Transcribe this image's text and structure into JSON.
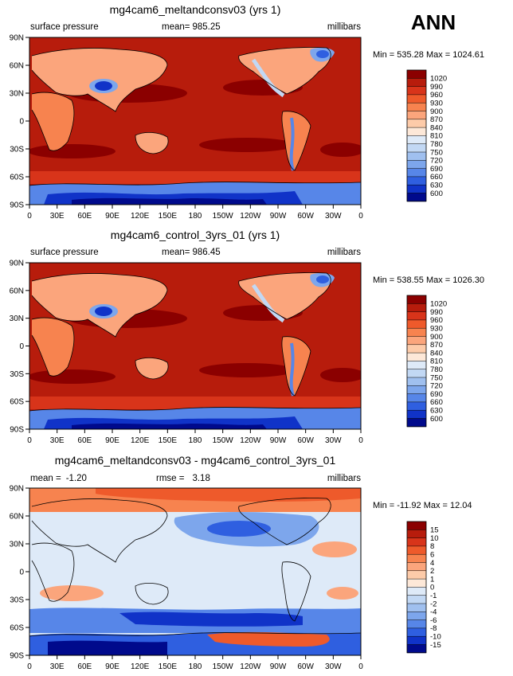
{
  "season_label": "ANN",
  "chart_data": [
    {
      "type": "heatmap",
      "title": "mg4cam6_meltandconsv03 (yrs 1)",
      "variable": "surface pressure",
      "stat_label": "mean=",
      "stat_value": "985.25",
      "units": "millibars",
      "min_max": "Min = 535.28 Max = 1024.61",
      "x_ticks": [
        "0",
        "30E",
        "60E",
        "90E",
        "120E",
        "150E",
        "180",
        "150W",
        "120W",
        "90W",
        "60W",
        "30W",
        "0"
      ],
      "y_ticks": [
        "90N",
        "60N",
        "30N",
        "0",
        "30S",
        "60S",
        "90S"
      ],
      "xlim": [
        0,
        360
      ],
      "ylim": [
        -90,
        90
      ],
      "colorbar": {
        "levels": [
          "1020",
          "990",
          "960",
          "930",
          "900",
          "870",
          "840",
          "810",
          "780",
          "750",
          "720",
          "690",
          "660",
          "630",
          "600"
        ],
        "colors": [
          "#8b0000",
          "#b71c0c",
          "#d8341a",
          "#ee5a2b",
          "#f7834f",
          "#fba57c",
          "#fdcba9",
          "#fde8d8",
          "#deeaf8",
          "#c2d8f4",
          "#a0c0ef",
          "#7da6ec",
          "#5786e8",
          "#2f5fe0",
          "#1033c8",
          "#000a8c"
        ]
      }
    },
    {
      "type": "heatmap",
      "title": "mg4cam6_control_3yrs_01 (yrs 1)",
      "variable": "surface pressure",
      "stat_label": "mean=",
      "stat_value": "986.45",
      "units": "millibars",
      "min_max": "Min = 538.55 Max = 1026.30",
      "x_ticks": [
        "0",
        "30E",
        "60E",
        "90E",
        "120E",
        "150E",
        "180",
        "150W",
        "120W",
        "90W",
        "60W",
        "30W",
        "0"
      ],
      "y_ticks": [
        "90N",
        "60N",
        "30N",
        "0",
        "30S",
        "60S",
        "90S"
      ],
      "xlim": [
        0,
        360
      ],
      "ylim": [
        -90,
        90
      ],
      "colorbar": {
        "levels": [
          "1020",
          "990",
          "960",
          "930",
          "900",
          "870",
          "840",
          "810",
          "780",
          "750",
          "720",
          "690",
          "660",
          "630",
          "600"
        ],
        "colors": [
          "#8b0000",
          "#b71c0c",
          "#d8341a",
          "#ee5a2b",
          "#f7834f",
          "#fba57c",
          "#fdcba9",
          "#fde8d8",
          "#deeaf8",
          "#c2d8f4",
          "#a0c0ef",
          "#7da6ec",
          "#5786e8",
          "#2f5fe0",
          "#1033c8",
          "#000a8c"
        ]
      }
    },
    {
      "type": "heatmap",
      "title": "mg4cam6_meltandconsv03 - mg4cam6_control_3yrs_01",
      "variable": "mean =",
      "variable_value": "-1.20",
      "stat_label": "rmse =",
      "stat_value": "3.18",
      "units": "millibars",
      "min_max": "Min = -11.92 Max = 12.04",
      "x_ticks": [
        "0",
        "30E",
        "60E",
        "90E",
        "120E",
        "150E",
        "180",
        "150W",
        "120W",
        "90W",
        "60W",
        "30W",
        "0"
      ],
      "y_ticks": [
        "90N",
        "60N",
        "30N",
        "0",
        "30S",
        "60S",
        "90S"
      ],
      "xlim": [
        0,
        360
      ],
      "ylim": [
        -90,
        90
      ],
      "colorbar": {
        "levels": [
          "15",
          "10",
          "8",
          "6",
          "4",
          "2",
          "1",
          "0",
          "-1",
          "-2",
          "-4",
          "-6",
          "-8",
          "-10",
          "-15"
        ],
        "colors": [
          "#8b0000",
          "#b71c0c",
          "#d8341a",
          "#ee5a2b",
          "#f7834f",
          "#fba57c",
          "#fdcba9",
          "#fde8d8",
          "#deeaf8",
          "#c2d8f4",
          "#a0c0ef",
          "#7da6ec",
          "#5786e8",
          "#2f5fe0",
          "#1033c8",
          "#000a8c"
        ]
      }
    }
  ]
}
